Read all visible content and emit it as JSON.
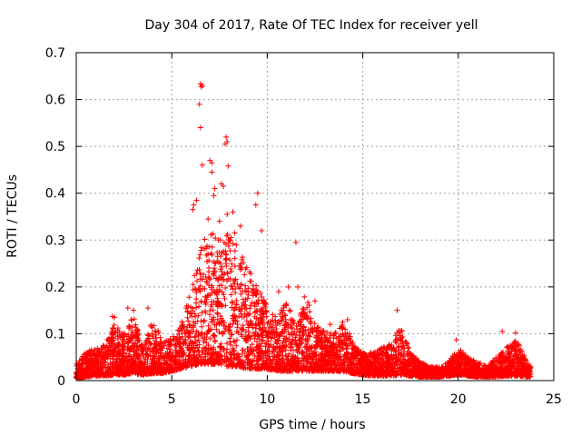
{
  "chart_data": {
    "type": "scatter",
    "title": "Day 304 of 2017, Rate Of TEC Index for receiver yell",
    "xlabel": "GPS time / hours",
    "ylabel": "ROTI / TECUs",
    "xlim": [
      0,
      25
    ],
    "ylim": [
      0,
      0.7
    ],
    "x_ticks": [
      0,
      5,
      10,
      15,
      20,
      25
    ],
    "x_tick_labels": [
      "0",
      "5",
      "10",
      "15",
      "20",
      "25"
    ],
    "y_ticks": [
      0,
      0.1,
      0.2,
      0.3,
      0.4,
      0.5,
      0.6,
      0.7
    ],
    "y_tick_labels": [
      "0",
      "0.1",
      "0.2",
      "0.3",
      "0.4",
      "0.5",
      "0.6",
      "0.7"
    ],
    "grid": true,
    "marker": "+",
    "marker_color": "#ff0000",
    "envelope": {
      "x": [
        0,
        0.5,
        1,
        1.5,
        2,
        2.5,
        3,
        3.5,
        4,
        4.5,
        5,
        5.5,
        6,
        6.5,
        7,
        7.5,
        8,
        8.5,
        9,
        9.5,
        10,
        10.5,
        11,
        11.5,
        12,
        12.5,
        13,
        13.5,
        14,
        14.5,
        15,
        15.5,
        16,
        16.5,
        17,
        17.5,
        18,
        18.5,
        19,
        19.5,
        20,
        20.5,
        21,
        21.5,
        22,
        22.5,
        23,
        23.5,
        23.8
      ],
      "upper": [
        0.035,
        0.06,
        0.07,
        0.08,
        0.12,
        0.1,
        0.14,
        0.07,
        0.13,
        0.09,
        0.09,
        0.12,
        0.2,
        0.28,
        0.33,
        0.3,
        0.33,
        0.28,
        0.24,
        0.2,
        0.16,
        0.14,
        0.17,
        0.12,
        0.19,
        0.12,
        0.11,
        0.1,
        0.13,
        0.08,
        0.06,
        0.06,
        0.07,
        0.08,
        0.12,
        0.06,
        0.04,
        0.03,
        0.03,
        0.04,
        0.07,
        0.05,
        0.04,
        0.03,
        0.05,
        0.07,
        0.09,
        0.05,
        0.03
      ],
      "lower": [
        0.005,
        0.008,
        0.01,
        0.01,
        0.012,
        0.012,
        0.015,
        0.012,
        0.015,
        0.015,
        0.02,
        0.025,
        0.03,
        0.035,
        0.035,
        0.035,
        0.03,
        0.03,
        0.025,
        0.025,
        0.025,
        0.02,
        0.02,
        0.02,
        0.02,
        0.02,
        0.02,
        0.02,
        0.02,
        0.015,
        0.012,
        0.01,
        0.01,
        0.01,
        0.012,
        0.01,
        0.008,
        0.008,
        0.008,
        0.01,
        0.012,
        0.01,
        0.008,
        0.008,
        0.008,
        0.01,
        0.01,
        0.008,
        0.008
      ]
    },
    "outliers": [
      [
        6.5,
        0.633
      ],
      [
        6.55,
        0.627
      ],
      [
        6.6,
        0.63
      ],
      [
        6.45,
        0.59
      ],
      [
        6.5,
        0.54
      ],
      [
        7.85,
        0.52
      ],
      [
        7.9,
        0.51
      ],
      [
        7.8,
        0.505
      ],
      [
        6.6,
        0.46
      ],
      [
        7.0,
        0.47
      ],
      [
        7.1,
        0.465
      ],
      [
        7.95,
        0.458
      ],
      [
        7.1,
        0.445
      ],
      [
        7.6,
        0.42
      ],
      [
        7.7,
        0.415
      ],
      [
        9.5,
        0.4
      ],
      [
        7.2,
        0.395
      ],
      [
        6.15,
        0.375
      ],
      [
        6.1,
        0.365
      ],
      [
        6.3,
        0.385
      ],
      [
        9.4,
        0.375
      ],
      [
        8.2,
        0.36
      ],
      [
        7.9,
        0.355
      ],
      [
        7.25,
        0.41
      ],
      [
        11.5,
        0.295
      ],
      [
        8.6,
        0.33
      ],
      [
        9.7,
        0.32
      ],
      [
        6.9,
        0.345
      ],
      [
        7.5,
        0.34
      ],
      [
        8.3,
        0.315
      ],
      [
        2.7,
        0.155
      ],
      [
        3.0,
        0.15
      ],
      [
        3.75,
        0.155
      ],
      [
        1.9,
        0.137
      ],
      [
        2.0,
        0.135
      ],
      [
        14.2,
        0.13
      ],
      [
        16.8,
        0.15
      ],
      [
        22.3,
        0.105
      ],
      [
        23.0,
        0.102
      ],
      [
        19.9,
        0.087
      ],
      [
        12.5,
        0.17
      ],
      [
        11.1,
        0.2
      ],
      [
        11.6,
        0.2
      ],
      [
        13.3,
        0.12
      ],
      [
        10.6,
        0.19
      ]
    ]
  }
}
